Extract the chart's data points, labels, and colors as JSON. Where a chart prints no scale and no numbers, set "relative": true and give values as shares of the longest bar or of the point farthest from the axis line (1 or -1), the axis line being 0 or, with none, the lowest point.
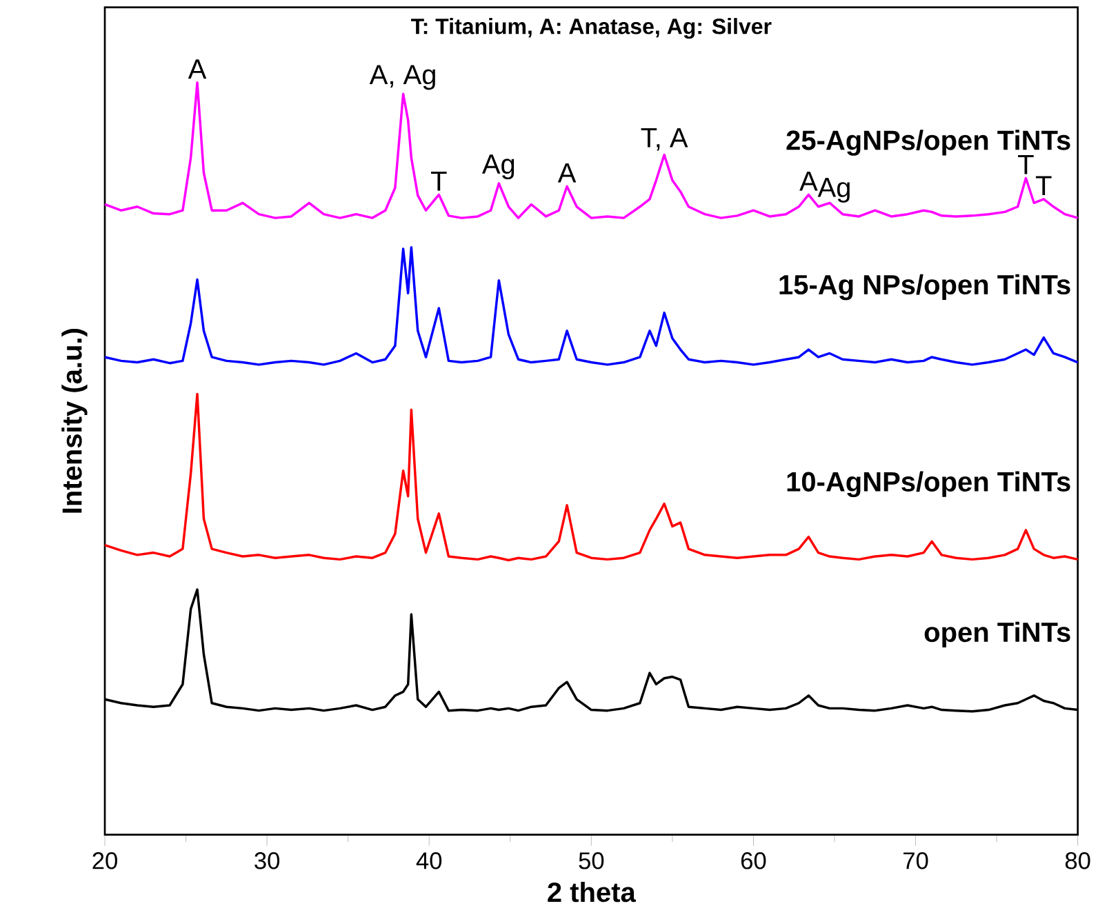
{
  "chart_data": {
    "type": "line",
    "relative": true,
    "title": "T: Titanium, A: Anatase, Ag: Silver",
    "xlabel": "2 theta",
    "ylabel": "Intensity (a.u.)",
    "xlim": [
      20,
      80
    ],
    "xticks": [
      20,
      30,
      40,
      50,
      60,
      70,
      80
    ],
    "tick_labels": "x",
    "grid": false,
    "legend": false,
    "marker": "none",
    "line_style": "solid",
    "x": [
      20,
      21,
      22,
      23,
      24,
      24.8,
      25.3,
      25.7,
      26.1,
      26.6,
      27.5,
      28.5,
      29.5,
      30.5,
      31.5,
      32.6,
      33.5,
      34.5,
      35.5,
      36.5,
      37.3,
      37.9,
      38.4,
      38.7,
      38.9,
      39.3,
      39.8,
      40.6,
      41.2,
      42,
      43,
      43.8,
      44.3,
      44.9,
      45.5,
      46.3,
      47.2,
      48,
      48.5,
      49.1,
      50,
      51,
      52,
      53,
      53.6,
      54,
      54.5,
      55,
      55.5,
      56,
      57,
      58,
      59,
      60,
      61,
      62,
      62.8,
      63.4,
      64,
      64.7,
      65.5,
      66.5,
      67.5,
      68.5,
      69.5,
      70.5,
      71,
      71.6,
      72.5,
      73.5,
      74.5,
      75.5,
      76.3,
      76.8,
      77.3,
      77.9,
      78.5,
      79.2,
      80
    ],
    "series": [
      {
        "name": "25-AgNPs/open TiNTs",
        "color": "#ff00ff",
        "values": [
          0.838,
          0.83,
          0.835,
          0.826,
          0.825,
          0.83,
          0.9,
          1.0,
          0.88,
          0.83,
          0.83,
          0.84,
          0.825,
          0.82,
          0.822,
          0.84,
          0.825,
          0.82,
          0.825,
          0.82,
          0.83,
          0.86,
          0.985,
          0.95,
          0.9,
          0.85,
          0.83,
          0.851,
          0.823,
          0.82,
          0.822,
          0.83,
          0.866,
          0.835,
          0.82,
          0.838,
          0.822,
          0.83,
          0.862,
          0.835,
          0.82,
          0.822,
          0.82,
          0.835,
          0.845,
          0.87,
          0.904,
          0.87,
          0.855,
          0.835,
          0.825,
          0.82,
          0.823,
          0.83,
          0.822,
          0.825,
          0.835,
          0.851,
          0.835,
          0.84,
          0.825,
          0.822,
          0.83,
          0.822,
          0.825,
          0.83,
          0.828,
          0.823,
          0.822,
          0.823,
          0.825,
          0.828,
          0.835,
          0.873,
          0.84,
          0.845,
          0.835,
          0.825,
          0.82
        ]
      },
      {
        "name": "15-Ag NPs/open TiNTs",
        "color": "#0000ff",
        "values": [
          0.635,
          0.63,
          0.628,
          0.632,
          0.627,
          0.63,
          0.68,
          0.738,
          0.67,
          0.635,
          0.63,
          0.628,
          0.625,
          0.628,
          0.63,
          0.628,
          0.625,
          0.63,
          0.64,
          0.628,
          0.632,
          0.65,
          0.779,
          0.72,
          0.781,
          0.67,
          0.635,
          0.7,
          0.63,
          0.628,
          0.63,
          0.635,
          0.737,
          0.665,
          0.632,
          0.628,
          0.63,
          0.632,
          0.67,
          0.632,
          0.628,
          0.625,
          0.628,
          0.635,
          0.67,
          0.65,
          0.694,
          0.66,
          0.645,
          0.632,
          0.628,
          0.63,
          0.628,
          0.625,
          0.628,
          0.632,
          0.635,
          0.645,
          0.635,
          0.64,
          0.632,
          0.63,
          0.628,
          0.632,
          0.628,
          0.63,
          0.635,
          0.632,
          0.628,
          0.625,
          0.628,
          0.632,
          0.64,
          0.645,
          0.638,
          0.661,
          0.64,
          0.635,
          0.628
        ]
      },
      {
        "name": "10-AgNPs/open TiNTs",
        "color": "#ff0000",
        "values": [
          0.385,
          0.378,
          0.372,
          0.375,
          0.37,
          0.38,
          0.48,
          0.586,
          0.42,
          0.38,
          0.375,
          0.37,
          0.372,
          0.368,
          0.37,
          0.372,
          0.368,
          0.366,
          0.37,
          0.368,
          0.375,
          0.4,
          0.484,
          0.45,
          0.565,
          0.42,
          0.375,
          0.427,
          0.37,
          0.368,
          0.366,
          0.37,
          0.368,
          0.365,
          0.368,
          0.366,
          0.37,
          0.39,
          0.438,
          0.375,
          0.368,
          0.366,
          0.368,
          0.375,
          0.405,
          0.42,
          0.44,
          0.41,
          0.415,
          0.38,
          0.372,
          0.37,
          0.368,
          0.37,
          0.372,
          0.372,
          0.38,
          0.396,
          0.375,
          0.37,
          0.368,
          0.366,
          0.37,
          0.372,
          0.37,
          0.375,
          0.39,
          0.372,
          0.368,
          0.366,
          0.368,
          0.372,
          0.38,
          0.405,
          0.38,
          0.372,
          0.368,
          0.37,
          0.366
        ]
      },
      {
        "name": "open TiNTs",
        "color": "#000000",
        "values": [
          0.18,
          0.175,
          0.172,
          0.17,
          0.172,
          0.2,
          0.3,
          0.326,
          0.24,
          0.175,
          0.17,
          0.168,
          0.165,
          0.168,
          0.166,
          0.168,
          0.165,
          0.168,
          0.172,
          0.166,
          0.17,
          0.185,
          0.19,
          0.2,
          0.293,
          0.18,
          0.17,
          0.19,
          0.165,
          0.166,
          0.165,
          0.168,
          0.166,
          0.168,
          0.165,
          0.17,
          0.172,
          0.195,
          0.203,
          0.18,
          0.166,
          0.165,
          0.168,
          0.175,
          0.215,
          0.2,
          0.208,
          0.21,
          0.206,
          0.17,
          0.168,
          0.166,
          0.17,
          0.168,
          0.166,
          0.168,
          0.175,
          0.185,
          0.172,
          0.168,
          0.168,
          0.166,
          0.165,
          0.168,
          0.172,
          0.168,
          0.17,
          0.166,
          0.165,
          0.164,
          0.166,
          0.172,
          0.175,
          0.18,
          0.185,
          0.178,
          0.175,
          0.168,
          0.166
        ]
      }
    ],
    "annotations": [
      {
        "text": "A",
        "x": 25.7,
        "y": 1.0
      },
      {
        "text": "A, Ag",
        "x": 38.4,
        "y": 0.985
      },
      {
        "text": "T",
        "x": 40.6,
        "y": 0.851
      },
      {
        "text": "Ag",
        "x": 44.3,
        "y": 0.866
      },
      {
        "text": "A",
        "x": 48.5,
        "y": 0.862
      },
      {
        "text": "T, A",
        "x": 54.5,
        "y": 0.904
      },
      {
        "text": "A",
        "x": 63.4,
        "y": 0.851
      },
      {
        "text": "Ag",
        "x": 65,
        "y": 0.835
      },
      {
        "text": "T",
        "x": 76.8,
        "y": 0.873
      },
      {
        "text": "T",
        "x": 77.9,
        "y": 0.845
      }
    ]
  }
}
